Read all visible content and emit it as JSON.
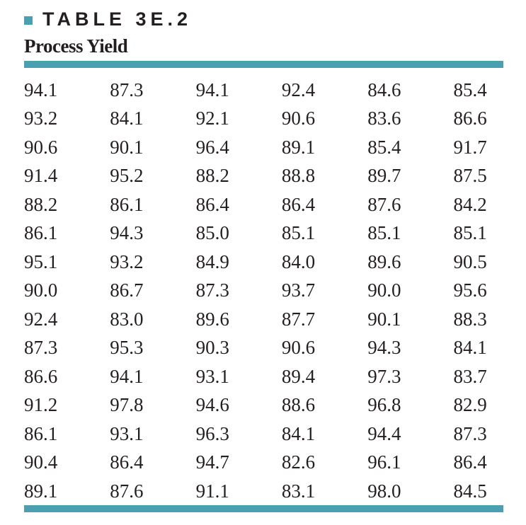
{
  "table": {
    "label": "TABLE 3E.2",
    "title": "Process Yield",
    "accent_color": "#4aa0b0",
    "rows": [
      [
        "94.1",
        "87.3",
        "94.1",
        "92.4",
        "84.6",
        "85.4"
      ],
      [
        "93.2",
        "84.1",
        "92.1",
        "90.6",
        "83.6",
        "86.6"
      ],
      [
        "90.6",
        "90.1",
        "96.4",
        "89.1",
        "85.4",
        "91.7"
      ],
      [
        "91.4",
        "95.2",
        "88.2",
        "88.8",
        "89.7",
        "87.5"
      ],
      [
        "88.2",
        "86.1",
        "86.4",
        "86.4",
        "87.6",
        "84.2"
      ],
      [
        "86.1",
        "94.3",
        "85.0",
        "85.1",
        "85.1",
        "85.1"
      ],
      [
        "95.1",
        "93.2",
        "84.9",
        "84.0",
        "89.6",
        "90.5"
      ],
      [
        "90.0",
        "86.7",
        "87.3",
        "93.7",
        "90.0",
        "95.6"
      ],
      [
        "92.4",
        "83.0",
        "89.6",
        "87.7",
        "90.1",
        "88.3"
      ],
      [
        "87.3",
        "95.3",
        "90.3",
        "90.6",
        "94.3",
        "84.1"
      ],
      [
        "86.6",
        "94.1",
        "93.1",
        "89.4",
        "97.3",
        "83.7"
      ],
      [
        "91.2",
        "97.8",
        "94.6",
        "88.6",
        "96.8",
        "82.9"
      ],
      [
        "86.1",
        "93.1",
        "96.3",
        "84.1",
        "94.4",
        "87.3"
      ],
      [
        "90.4",
        "86.4",
        "94.7",
        "82.6",
        "96.1",
        "86.4"
      ],
      [
        "89.1",
        "87.6",
        "91.1",
        "83.1",
        "98.0",
        "84.5"
      ]
    ]
  }
}
